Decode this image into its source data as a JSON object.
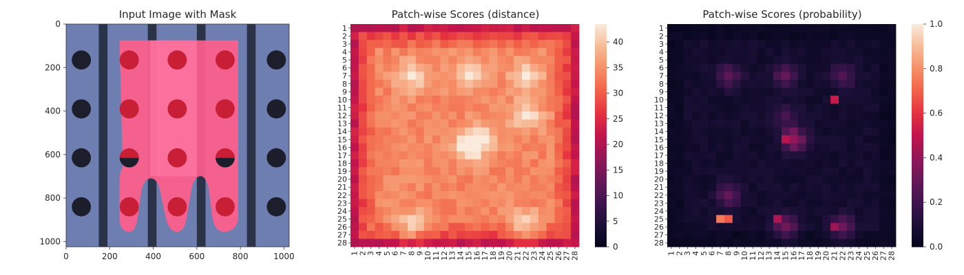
{
  "chart_data": [
    {
      "type": "image",
      "title": "Input Image with Mask",
      "xlim": [
        0,
        1024
      ],
      "ylim": [
        1024,
        0
      ],
      "xticks": [
        "0",
        "200",
        "400",
        "600",
        "800",
        "1000"
      ],
      "yticks": [
        "0",
        "200",
        "400",
        "600",
        "800",
        "1000"
      ],
      "colors": {
        "background": "#6f7eb0",
        "stripe": "#2b3349",
        "hole": "#1c1f2b",
        "mask": "#ff5e8c",
        "hole_in_mask": "#c81e36"
      }
    },
    {
      "type": "heatmap",
      "title": "Patch-wise Scores (distance)",
      "rows": [
        "1",
        "2",
        "3",
        "4",
        "5",
        "6",
        "7",
        "8",
        "9",
        "10",
        "11",
        "12",
        "13",
        "14",
        "15",
        "16",
        "17",
        "18",
        "19",
        "20",
        "21",
        "22",
        "23",
        "24",
        "25",
        "26",
        "27",
        "28"
      ],
      "cols": [
        "1",
        "2",
        "3",
        "4",
        "5",
        "6",
        "7",
        "8",
        "9",
        "10",
        "11",
        "12",
        "13",
        "14",
        "15",
        "16",
        "17",
        "18",
        "19",
        "20",
        "21",
        "22",
        "23",
        "24",
        "25",
        "26",
        "27",
        "28"
      ],
      "colorbar": {
        "min": 0,
        "max": 43.5,
        "ticks": [
          "0",
          "5",
          "10",
          "15",
          "20",
          "25",
          "30",
          "35",
          "40"
        ]
      },
      "colormap": "rocket",
      "pattern": "edges ~20-30, interior ~32-42, peaks ~43 near rows 6-7 & 25-26 cols 7-8,21-22 and rows 14-15 col 15"
    },
    {
      "type": "heatmap",
      "title": "Patch-wise Scores (probability)",
      "rows": [
        "1",
        "2",
        "3",
        "4",
        "5",
        "6",
        "7",
        "8",
        "9",
        "10",
        "11",
        "12",
        "13",
        "14",
        "15",
        "16",
        "17",
        "18",
        "19",
        "20",
        "21",
        "22",
        "23",
        "24",
        "25",
        "26",
        "27",
        "28"
      ],
      "cols": [
        "1",
        "2",
        "3",
        "4",
        "5",
        "6",
        "7",
        "8",
        "9",
        "10",
        "11",
        "12",
        "13",
        "14",
        "15",
        "16",
        "17",
        "18",
        "19",
        "20",
        "21",
        "22",
        "23",
        "24",
        "25",
        "26",
        "27",
        "28"
      ],
      "colorbar": {
        "min": 0,
        "max": 1,
        "ticks": [
          "0.0",
          "0.2",
          "0.4",
          "0.6",
          "0.8",
          "1.0"
        ]
      },
      "colormap": "rocket",
      "hotspots": [
        {
          "row": 25,
          "col": 7,
          "value": 0.75
        },
        {
          "row": 25,
          "col": 8,
          "value": 0.68
        },
        {
          "row": 10,
          "col": 21,
          "value": 0.52
        },
        {
          "row": 15,
          "col": 15,
          "value": 0.48
        },
        {
          "row": 25,
          "col": 14,
          "value": 0.45
        },
        {
          "row": 26,
          "col": 21,
          "value": 0.42
        }
      ]
    }
  ]
}
